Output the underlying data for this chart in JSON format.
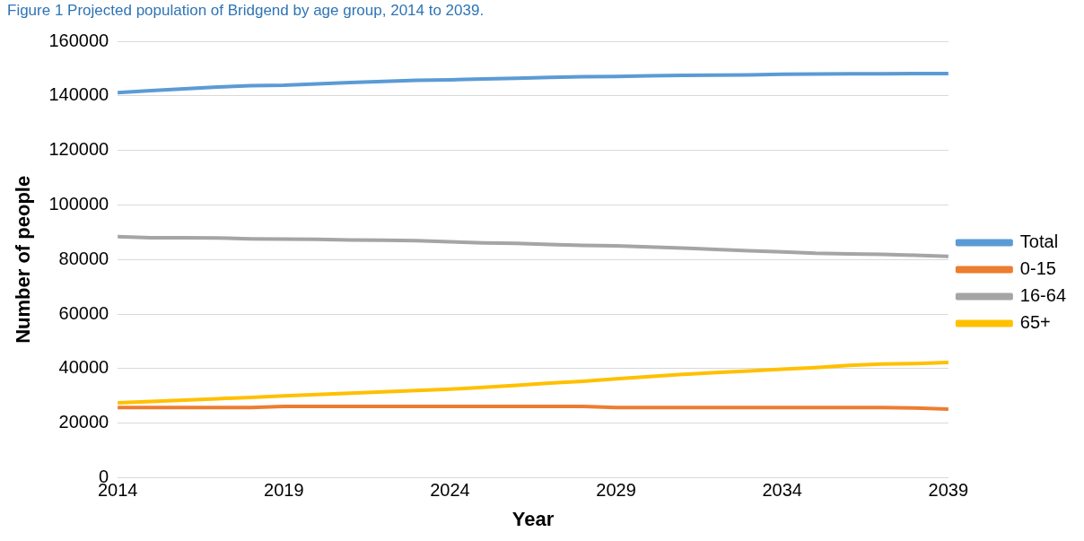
{
  "chart_data": {
    "type": "line",
    "title": "Figure 1 Projected population of Bridgend by age group, 2014 to 2039.",
    "xlabel": "Year",
    "ylabel": "Number of people",
    "x": [
      2014,
      2015,
      2016,
      2017,
      2018,
      2019,
      2020,
      2021,
      2022,
      2023,
      2024,
      2025,
      2026,
      2027,
      2028,
      2029,
      2030,
      2031,
      2032,
      2033,
      2034,
      2035,
      2036,
      2037,
      2038,
      2039
    ],
    "series": [
      {
        "name": "Total",
        "color": "#5b9bd5",
        "values": [
          141200,
          141900,
          142600,
          143200,
          143700,
          143900,
          144400,
          144900,
          145300,
          145700,
          145900,
          146200,
          146400,
          146800,
          147000,
          147100,
          147300,
          147500,
          147600,
          147700,
          147900,
          148000,
          148100,
          148100,
          148200,
          148200
        ]
      },
      {
        "name": "0-15",
        "color": "#ed7d31",
        "values": [
          25800,
          25800,
          25800,
          25800,
          25800,
          26200,
          26200,
          26200,
          26200,
          26200,
          26200,
          26200,
          26200,
          26200,
          26200,
          25800,
          25800,
          25800,
          25800,
          25800,
          25800,
          25800,
          25800,
          25800,
          25600,
          25200
        ]
      },
      {
        "name": "16-64",
        "color": "#a5a5a5",
        "values": [
          88400,
          88000,
          88000,
          87900,
          87600,
          87500,
          87400,
          87200,
          87100,
          86900,
          86500,
          86100,
          85900,
          85500,
          85200,
          85000,
          84600,
          84200,
          83700,
          83200,
          82800,
          82300,
          82100,
          81900,
          81600,
          81200
        ]
      },
      {
        "name": "65+",
        "color": "#ffc000",
        "values": [
          27500,
          28000,
          28500,
          29000,
          29500,
          30000,
          30500,
          31000,
          31500,
          32000,
          32500,
          33200,
          33900,
          34700,
          35400,
          36300,
          37100,
          37900,
          38600,
          39200,
          39800,
          40400,
          41200,
          41700,
          41900,
          42300
        ]
      }
    ],
    "xlim": [
      2014,
      2039
    ],
    "xticks": [
      2014,
      2019,
      2024,
      2029,
      2034,
      2039
    ],
    "ylim": [
      0,
      160000
    ],
    "yticks": [
      0,
      20000,
      40000,
      60000,
      80000,
      100000,
      120000,
      140000,
      160000
    ],
    "grid": "y",
    "legend": "right",
    "marker": "none",
    "line_style": "solid"
  }
}
